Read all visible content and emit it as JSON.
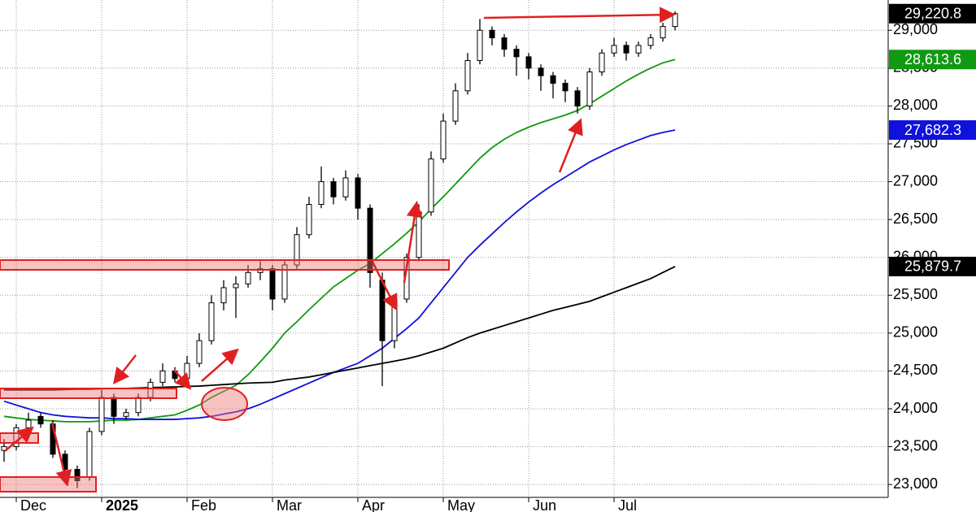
{
  "chart_data": {
    "type": "candlestick",
    "categories": [
      null,
      "Dec",
      null,
      null,
      null,
      null,
      null,
      null,
      "2025",
      null,
      null,
      null,
      null,
      null,
      null,
      "Feb",
      null,
      null,
      null,
      null,
      null,
      null,
      "Mar",
      null,
      null,
      null,
      null,
      null,
      null,
      "Apr",
      null,
      null,
      null,
      null,
      null,
      null,
      "May",
      null,
      null,
      null,
      null,
      null,
      null,
      "Jun",
      null,
      null,
      null,
      null,
      null,
      null,
      "Jul",
      null,
      null,
      null,
      null,
      null
    ],
    "open": [
      23450,
      23500,
      23750,
      23900,
      23800,
      23400,
      23200,
      23100,
      23700,
      24150,
      23900,
      23950,
      24150,
      24350,
      24500,
      24400,
      24600,
      24900,
      25400,
      25600,
      25650,
      25800,
      25850,
      25450,
      25900,
      26300,
      26700,
      27000,
      26800,
      27050,
      26650,
      25700,
      24900,
      25450,
      26000,
      26600,
      27300,
      27800,
      28200,
      28600,
      29000,
      28900,
      28750,
      28650,
      28500,
      28400,
      28300,
      28200,
      28000,
      28450,
      28700,
      28800,
      28700,
      28800,
      28900,
      29050
    ],
    "high": [
      23600,
      23800,
      23950,
      23950,
      23850,
      23450,
      23250,
      23750,
      24250,
      24200,
      24000,
      24200,
      24400,
      24600,
      24550,
      24700,
      25000,
      25500,
      25700,
      25750,
      25900,
      25950,
      25900,
      25950,
      26400,
      26800,
      27200,
      27050,
      27150,
      27100,
      26700,
      25800,
      25500,
      26050,
      26700,
      27400,
      27900,
      28300,
      28700,
      29150,
      29050,
      28950,
      28800,
      28700,
      28550,
      28450,
      28350,
      28250,
      28500,
      28750,
      28900,
      28850,
      28850,
      28950,
      29100,
      29250
    ],
    "low": [
      23300,
      23450,
      23700,
      23750,
      23350,
      23150,
      22950,
      23050,
      23650,
      23800,
      23850,
      23900,
      24100,
      24300,
      24350,
      24350,
      24550,
      24850,
      25300,
      25200,
      25600,
      25700,
      25300,
      25400,
      25850,
      26250,
      26650,
      26700,
      26750,
      26500,
      25600,
      24300,
      24800,
      25400,
      25950,
      26550,
      27250,
      27750,
      28150,
      28550,
      28800,
      28650,
      28400,
      28350,
      28200,
      28100,
      28050,
      27900,
      27950,
      28400,
      28650,
      28600,
      28650,
      28750,
      28850,
      29000
    ],
    "close": [
      23500,
      23750,
      23850,
      23800,
      23400,
      23200,
      23050,
      23700,
      24150,
      23900,
      23950,
      24150,
      24350,
      24500,
      24400,
      24600,
      24900,
      25400,
      25600,
      25650,
      25800,
      25850,
      25450,
      25900,
      26300,
      26700,
      27000,
      26800,
      27050,
      26650,
      25800,
      24900,
      25450,
      26000,
      26600,
      27300,
      27800,
      28200,
      28600,
      29000,
      28900,
      28750,
      28650,
      28500,
      28400,
      28300,
      28200,
      28000,
      28450,
      28700,
      28800,
      28700,
      28800,
      28900,
      29050,
      29220
    ],
    "last_label": "29,220.8",
    "series": [
      {
        "color": "#119911",
        "last_label": "28,613.6",
        "values": [
          23900,
          23880,
          23860,
          23850,
          23840,
          23830,
          23830,
          23830,
          23840,
          23850,
          23850,
          23860,
          23880,
          23900,
          23920,
          23980,
          24050,
          24150,
          24230,
          24310,
          24450,
          24620,
          24800,
          25000,
          25150,
          25310,
          25460,
          25610,
          25720,
          25830,
          25920,
          26050,
          26180,
          26320,
          26470,
          26640,
          26800,
          26970,
          27140,
          27310,
          27450,
          27560,
          27650,
          27720,
          27780,
          27830,
          27880,
          27940,
          28030,
          28130,
          28230,
          28330,
          28420,
          28500,
          28570,
          28613.6
        ]
      },
      {
        "color": "#1111dd",
        "last_label": "27,682.3",
        "values": [
          24100,
          24050,
          24000,
          23950,
          23920,
          23900,
          23890,
          23880,
          23880,
          23870,
          23870,
          23860,
          23860,
          23860,
          23860,
          23870,
          23880,
          23900,
          23930,
          23960,
          24000,
          24060,
          24130,
          24200,
          24270,
          24340,
          24410,
          24480,
          24540,
          24600,
          24700,
          24800,
          24930,
          25060,
          25200,
          25400,
          25600,
          25800,
          26000,
          26160,
          26310,
          26460,
          26600,
          26730,
          26850,
          26960,
          27060,
          27160,
          27260,
          27340,
          27420,
          27490,
          27550,
          27610,
          27650,
          27682.3
        ]
      },
      {
        "color": "#000000",
        "last_label": "25,879.7",
        "values": [
          24250,
          24250,
          24250,
          24250,
          24250,
          24255,
          24260,
          24260,
          24265,
          24270,
          24270,
          24275,
          24280,
          24285,
          24290,
          24295,
          24300,
          24310,
          24320,
          24330,
          24340,
          24345,
          24350,
          24380,
          24400,
          24420,
          24450,
          24480,
          24510,
          24540,
          24570,
          24600,
          24630,
          24660,
          24700,
          24750,
          24800,
          24870,
          24940,
          25000,
          25050,
          25100,
          25150,
          25200,
          25250,
          25300,
          25340,
          25380,
          25420,
          25480,
          25540,
          25600,
          25660,
          25720,
          25800,
          25879.7
        ]
      }
    ],
    "ylim": [
      22830,
      29400
    ],
    "yticks": [
      {
        "value": 23000,
        "label": "23,000"
      },
      {
        "value": 23500,
        "label": "23,500"
      },
      {
        "value": 24000,
        "label": "24,000"
      },
      {
        "value": 24500,
        "label": "24,500"
      },
      {
        "value": 25000,
        "label": "25,000"
      },
      {
        "value": 25500,
        "label": "25,500"
      },
      {
        "value": 26000,
        "label": "26,000"
      },
      {
        "value": 26500,
        "label": "26,500"
      },
      {
        "value": 27000,
        "label": "27,000"
      },
      {
        "value": 27500,
        "label": "27,500"
      },
      {
        "value": 28000,
        "label": "28,000"
      },
      {
        "value": 28500,
        "label": "28,500"
      },
      {
        "value": 29000,
        "label": "29,000"
      }
    ],
    "grid": true
  }
}
